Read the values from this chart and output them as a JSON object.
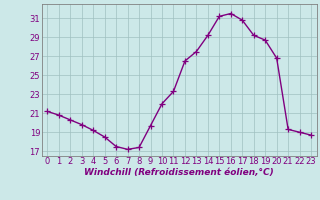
{
  "x": [
    0,
    1,
    2,
    3,
    4,
    5,
    6,
    7,
    8,
    9,
    10,
    11,
    12,
    13,
    14,
    15,
    16,
    17,
    18,
    19,
    20,
    21,
    22,
    23
  ],
  "y": [
    21.2,
    20.8,
    20.3,
    19.8,
    19.2,
    18.5,
    17.5,
    17.2,
    17.4,
    19.7,
    22.0,
    23.3,
    26.5,
    27.5,
    29.2,
    31.2,
    31.5,
    30.8,
    29.2,
    28.7,
    26.8,
    19.3,
    19.0,
    18.7
  ],
  "line_color": "#800080",
  "marker": "+",
  "marker_size": 4,
  "bg_color": "#cce8e8",
  "grid_color": "#a0c0c0",
  "xlabel": "Windchill (Refroidissement éolien,°C)",
  "ylim": [
    16.5,
    32.5
  ],
  "xlim": [
    -0.5,
    23.5
  ],
  "yticks": [
    17,
    19,
    21,
    23,
    25,
    27,
    29,
    31
  ],
  "xticks": [
    0,
    1,
    2,
    3,
    4,
    5,
    6,
    7,
    8,
    9,
    10,
    11,
    12,
    13,
    14,
    15,
    16,
    17,
    18,
    19,
    20,
    21,
    22,
    23
  ],
  "label_fontsize": 6.5,
  "tick_fontsize": 6.0,
  "line_width": 1.0
}
